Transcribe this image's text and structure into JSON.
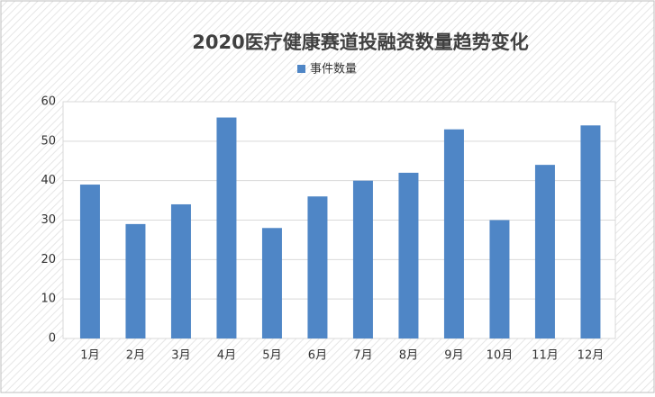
{
  "chart_data": {
    "type": "bar",
    "title": "2020医疗健康赛道投融资数量趋势变化",
    "categories": [
      "1月",
      "2月",
      "3月",
      "4月",
      "5月",
      "6月",
      "7月",
      "8月",
      "9月",
      "10月",
      "11月",
      "12月"
    ],
    "series": [
      {
        "name": "事件数量",
        "color": "#4f86c6",
        "values": [
          39,
          29,
          34,
          56,
          28,
          36,
          40,
          42,
          53,
          30,
          44,
          54
        ]
      }
    ],
    "ylim": [
      0,
      60
    ],
    "yticks": [
      0,
      10,
      20,
      30,
      40,
      50,
      60
    ],
    "grid": true,
    "legend": "top"
  }
}
